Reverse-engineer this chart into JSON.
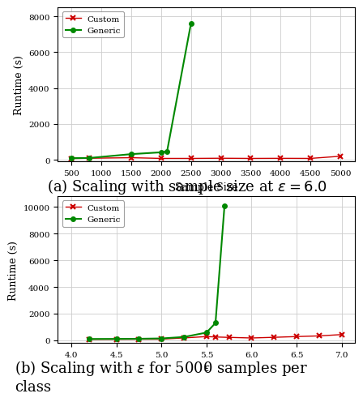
{
  "plot_a": {
    "xlabel": "Sample Size",
    "ylabel": "Runtime (s)",
    "xlim": [
      270,
      5250
    ],
    "ylim": [
      -100,
      8500
    ],
    "yticks": [
      0,
      2000,
      4000,
      6000,
      8000
    ],
    "xticks": [
      500,
      1000,
      1500,
      2000,
      2500,
      3000,
      3500,
      4000,
      4500,
      5000
    ],
    "custom_x": [
      500,
      800,
      1500,
      2000,
      2500,
      3000,
      3500,
      4000,
      4500,
      5000
    ],
    "custom_y": [
      75,
      90,
      120,
      80,
      80,
      90,
      80,
      85,
      80,
      200
    ],
    "generic_x": [
      500,
      800,
      1500,
      2000,
      2100,
      2500
    ],
    "generic_y": [
      95,
      105,
      320,
      420,
      480,
      7600
    ],
    "caption": "(a) Scaling with sample size at $\\epsilon = 6.0$"
  },
  "plot_b": {
    "xlabel": "$\\epsilon$",
    "ylabel": "Runtime (s)",
    "xlim": [
      3.85,
      7.15
    ],
    "ylim": [
      -200,
      10800
    ],
    "yticks": [
      0,
      2000,
      4000,
      6000,
      8000,
      10000
    ],
    "xticks": [
      4.0,
      4.5,
      5.0,
      5.5,
      6.0,
      6.5,
      7.0
    ],
    "custom_x": [
      4.2,
      4.5,
      4.75,
      5.0,
      5.25,
      5.5,
      5.6,
      5.75,
      6.0,
      6.25,
      6.5,
      6.75,
      7.0
    ],
    "custom_y": [
      70,
      75,
      80,
      85,
      180,
      280,
      250,
      220,
      175,
      225,
      280,
      330,
      430
    ],
    "generic_x": [
      4.2,
      4.5,
      4.75,
      5.0,
      5.25,
      5.5,
      5.6,
      5.7
    ],
    "generic_y": [
      100,
      105,
      115,
      140,
      250,
      580,
      1300,
      10100
    ],
    "caption": "(b) Scaling with $\\epsilon$ for 5000 samples per\nclass"
  },
  "custom_color": "#cc0000",
  "generic_color": "#008800",
  "legend_custom": "Custom",
  "legend_generic": "Generic",
  "background_color": "#ffffff",
  "grid_color": "#cccccc",
  "caption_fontsize": 14
}
